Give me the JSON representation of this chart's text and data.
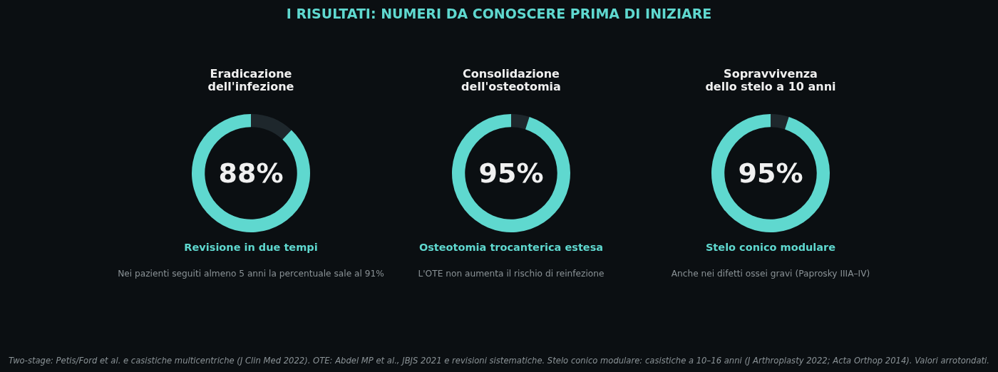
{
  "chart_data": [
    {
      "type": "other",
      "title": "I RISULTATI: NUMERI DA CONOSCERE PRIMA DI INIZIARE",
      "annotations": [
        "Two-stage: Petis/Ford et al. e casistiche multicentriche (J Clin Med 2022). OTE: Abdel MP et al., JBJS 2021 e revisioni sistematiche. Stelo conico modulare: casistiche a 10–16 anni (J Arthroplasty 2022; Acta Orthop 2014). Valori arrotondati."
      ]
    },
    {
      "type": "donut",
      "title": "Eradicazione dell'infezione",
      "subtitle": "Revisione in due tempi",
      "categories": [
        null,
        null
      ],
      "values": [
        12,
        88
      ],
      "colors": [
        "#1e272c",
        "#5fd8cf"
      ],
      "annotations": [
        "88%",
        "Nei pazienti seguiti almeno 5 anni la percentuale sale al 91%"
      ]
    },
    {
      "type": "donut",
      "title": "Consolidazione dell'osteotomia",
      "subtitle": "Osteotomia trocanterica estesa",
      "categories": [
        null,
        null
      ],
      "values": [
        5,
        95
      ],
      "colors": [
        "#1e272c",
        "#5fd8cf"
      ],
      "annotations": [
        "95%",
        "L'OTE non aumenta il rischio di reinfezione"
      ]
    },
    {
      "type": "donut",
      "title": "Sopravvivenza dello stelo a 10 anni",
      "subtitle": "Stelo conico modulare",
      "categories": [
        null,
        null
      ],
      "values": [
        5,
        95
      ],
      "colors": [
        "#1e272c",
        "#5fd8cf"
      ],
      "annotations": [
        "95%",
        "Anche nei difetti ossei gravi (Paprosky IIIA–IV)"
      ]
    }
  ]
}
